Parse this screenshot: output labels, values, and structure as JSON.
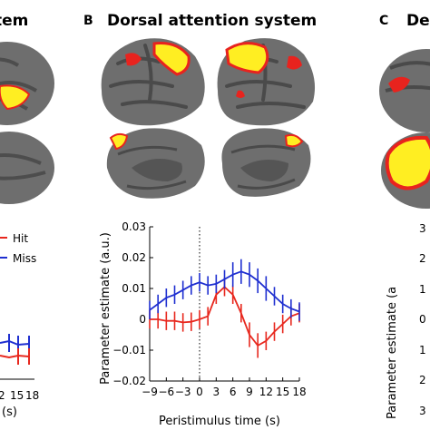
{
  "panels": {
    "left": {
      "title_fragment": "tem"
    },
    "center": {
      "letter": "B",
      "title": "Dorsal attention system"
    },
    "right": {
      "letter": "C",
      "title_fragment": "De"
    }
  },
  "colors": {
    "hit": "#e8281e",
    "miss": "#1f2fd0",
    "cortex": "#6e6e6e",
    "sulci": "#4a4a4a",
    "activation_yellow": "#ffee22",
    "activation_red": "#e8231e"
  },
  "left_panel": {
    "legend": {
      "hit": "Hit",
      "miss": "Miss"
    },
    "x_ticks_visible": [
      "2",
      "15",
      "18"
    ],
    "x_label_fragment": "(s)"
  },
  "right_panel": {
    "y_ticks_visible": [
      "3",
      "2",
      "1",
      "0",
      "1",
      "2",
      "3"
    ],
    "y_label_fragment": "Parameter estimate (a"
  },
  "chart_data": {
    "type": "line",
    "title": "",
    "xlabel": "Peristimulus time (s)",
    "ylabel": "Parameter estimate (a.u.)",
    "x": [
      -9,
      -6,
      -3,
      0,
      3,
      6,
      9,
      12,
      15,
      18
    ],
    "x_tick_labels": [
      "−9",
      "−6",
      "−3",
      "0",
      "3",
      "6",
      "9",
      "12",
      "15",
      "18"
    ],
    "xlim": [
      -9,
      18
    ],
    "ylim": [
      -0.02,
      0.03
    ],
    "y_ticks": [
      -0.02,
      -0.01,
      0,
      0.01,
      0.02,
      0.03
    ],
    "y_tick_labels": [
      "−0.02",
      "−0.01",
      "0",
      "0.01",
      "0.02",
      "0.03"
    ],
    "stimulus_onset_x": 0,
    "grid": false,
    "series": [
      {
        "name": "Hit",
        "color": "#e8281e",
        "x": [
          -9,
          -7.5,
          -6,
          -4.5,
          -3,
          -1.5,
          0,
          1.5,
          3,
          4.5,
          6,
          7.5,
          9,
          10.5,
          12,
          13.5,
          15,
          16.5,
          18
        ],
        "y": [
          0.0,
          0.0,
          -0.0005,
          -0.0005,
          -0.001,
          -0.0008,
          0.0,
          0.001,
          0.008,
          0.0105,
          0.008,
          0.002,
          -0.005,
          -0.0085,
          -0.007,
          -0.004,
          -0.0015,
          0.001,
          0.002
        ],
        "err": [
          0.003,
          0.003,
          0.003,
          0.003,
          0.003,
          0.003,
          0.003,
          0.003,
          0.003,
          0.003,
          0.003,
          0.003,
          0.004,
          0.004,
          0.003,
          0.003,
          0.003,
          0.003,
          0.003
        ]
      },
      {
        "name": "Miss",
        "color": "#1f2fd0",
        "x": [
          -9,
          -7.5,
          -6,
          -4.5,
          -3,
          -1.5,
          0,
          1.5,
          3,
          4.5,
          6,
          7.5,
          9,
          10.5,
          12,
          13.5,
          15,
          16.5,
          18
        ],
        "y": [
          0.003,
          0.005,
          0.007,
          0.008,
          0.0095,
          0.011,
          0.012,
          0.011,
          0.0115,
          0.013,
          0.0145,
          0.0155,
          0.0145,
          0.0125,
          0.01,
          0.0075,
          0.005,
          0.0035,
          0.0025
        ],
        "err": [
          0.003,
          0.003,
          0.003,
          0.003,
          0.003,
          0.003,
          0.003,
          0.003,
          0.003,
          0.003,
          0.004,
          0.004,
          0.004,
          0.004,
          0.004,
          0.003,
          0.003,
          0.003,
          0.003
        ]
      }
    ]
  }
}
